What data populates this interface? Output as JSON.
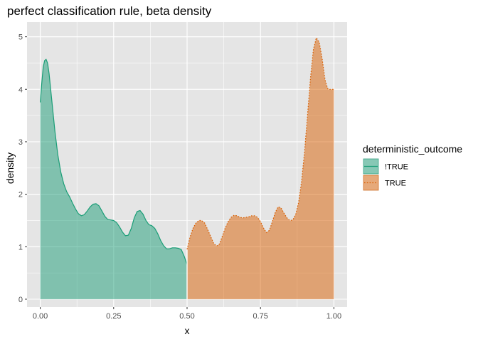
{
  "chart_data": {
    "type": "area",
    "title": "perfect classification rule, beta density",
    "xlabel": "x",
    "ylabel": "density",
    "xlim": [
      -0.045,
      1.045
    ],
    "ylim": [
      -0.15,
      5.28
    ],
    "x_ticks": [
      0,
      0.25,
      0.5,
      0.75,
      1
    ],
    "x_tick_labels": [
      "0.00",
      "0.25",
      "0.50",
      "0.75",
      "1.00"
    ],
    "y_ticks": [
      0,
      1,
      2,
      3,
      4,
      5
    ],
    "y_tick_labels": [
      "0",
      "1",
      "2",
      "3",
      "4",
      "5"
    ],
    "grid": true,
    "legend_position": "right",
    "legend_title": "deterministic_outcome",
    "colors": {
      "panel_bg": "#e5e5e5",
      "grid": "#ffffff",
      "series_true_not_line": "#1b9e77",
      "series_true_not_fill": "#1b9e77",
      "series_true_line": "#d95f02",
      "series_true_fill": "#d95f02"
    },
    "series": [
      {
        "name": "!TRUE",
        "line_style": "solid",
        "x": [
          0.0,
          0.005,
          0.01,
          0.015,
          0.02,
          0.025,
          0.03,
          0.04,
          0.05,
          0.06,
          0.07,
          0.08,
          0.09,
          0.1,
          0.11,
          0.12,
          0.13,
          0.14,
          0.15,
          0.16,
          0.17,
          0.18,
          0.19,
          0.2,
          0.21,
          0.22,
          0.23,
          0.24,
          0.25,
          0.26,
          0.27,
          0.28,
          0.29,
          0.3,
          0.31,
          0.32,
          0.33,
          0.34,
          0.35,
          0.36,
          0.37,
          0.38,
          0.39,
          0.4,
          0.41,
          0.42,
          0.43,
          0.44,
          0.45,
          0.46,
          0.47,
          0.48,
          0.49,
          0.5
        ],
        "y": [
          3.75,
          4.1,
          4.42,
          4.55,
          4.57,
          4.5,
          4.3,
          3.75,
          3.2,
          2.75,
          2.42,
          2.2,
          2.05,
          1.95,
          1.83,
          1.72,
          1.63,
          1.59,
          1.61,
          1.68,
          1.76,
          1.81,
          1.82,
          1.78,
          1.68,
          1.58,
          1.52,
          1.51,
          1.5,
          1.46,
          1.38,
          1.28,
          1.21,
          1.22,
          1.35,
          1.55,
          1.67,
          1.69,
          1.62,
          1.5,
          1.42,
          1.4,
          1.35,
          1.25,
          1.12,
          1.02,
          0.96,
          0.96,
          0.98,
          0.98,
          0.97,
          0.95,
          0.82,
          0.66
        ]
      },
      {
        "name": "TRUE",
        "line_style": "dotted",
        "x": [
          0.5,
          0.51,
          0.52,
          0.53,
          0.54,
          0.55,
          0.56,
          0.57,
          0.58,
          0.59,
          0.6,
          0.61,
          0.62,
          0.63,
          0.64,
          0.65,
          0.66,
          0.67,
          0.68,
          0.69,
          0.7,
          0.71,
          0.72,
          0.73,
          0.74,
          0.75,
          0.76,
          0.77,
          0.78,
          0.79,
          0.8,
          0.81,
          0.82,
          0.83,
          0.84,
          0.85,
          0.86,
          0.87,
          0.88,
          0.89,
          0.9,
          0.91,
          0.92,
          0.93,
          0.94,
          0.95,
          0.96,
          0.97,
          0.975,
          0.98,
          0.985,
          0.99,
          0.995,
          1.0
        ],
        "y": [
          0.95,
          1.18,
          1.35,
          1.45,
          1.5,
          1.5,
          1.45,
          1.33,
          1.2,
          1.07,
          1.01,
          1.05,
          1.2,
          1.36,
          1.48,
          1.56,
          1.6,
          1.59,
          1.56,
          1.55,
          1.56,
          1.57,
          1.59,
          1.59,
          1.56,
          1.48,
          1.36,
          1.27,
          1.31,
          1.47,
          1.65,
          1.76,
          1.74,
          1.64,
          1.55,
          1.5,
          1.51,
          1.62,
          1.85,
          2.25,
          2.8,
          3.5,
          4.2,
          4.75,
          4.98,
          4.9,
          4.58,
          4.18,
          4.08,
          4.0,
          4.0,
          4.0,
          4.0,
          4.0
        ]
      }
    ]
  }
}
